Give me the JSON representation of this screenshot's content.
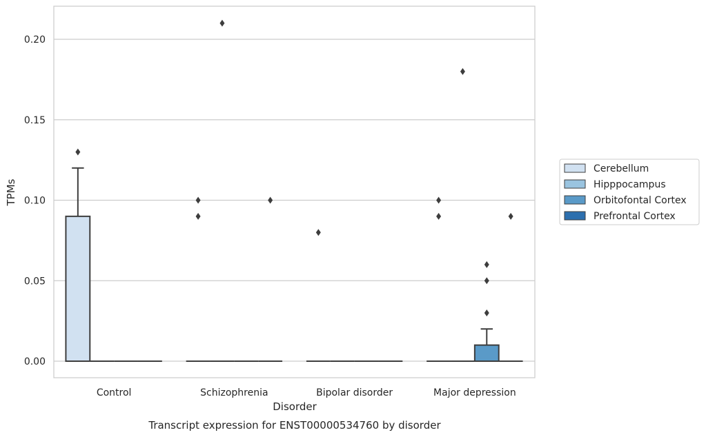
{
  "chart_data": {
    "type": "box",
    "title": "",
    "caption": "Transcript expression for ENST00000534760 by disorder",
    "xlabel": "Disorder",
    "ylabel": "TPMs",
    "ylim": [
      -0.01,
      0.22
    ],
    "yticks": [
      "0.00",
      "0.05",
      "0.10",
      "0.15",
      "0.20"
    ],
    "grid": true,
    "legend_position": "right",
    "categories": [
      "Control",
      "Schizophrenia",
      "Bipolar disorder",
      "Major depression"
    ],
    "series": [
      {
        "name": "Cerebellum",
        "color": "#d1e1f1",
        "boxes": [
          {
            "q1": 0.0,
            "median": 0.0,
            "q3": 0.09,
            "whisker_low": 0.0,
            "whisker_high": 0.12,
            "outliers": [
              0.13
            ]
          },
          {
            "q1": 0.0,
            "median": 0.0,
            "q3": 0.0,
            "whisker_low": 0.0,
            "whisker_high": 0.0,
            "outliers": [
              0.09,
              0.1
            ]
          },
          {
            "q1": 0.0,
            "median": 0.0,
            "q3": 0.0,
            "whisker_low": 0.0,
            "whisker_high": 0.0,
            "outliers": [
              0.08
            ]
          },
          {
            "q1": 0.0,
            "median": 0.0,
            "q3": 0.0,
            "whisker_low": 0.0,
            "whisker_high": 0.0,
            "outliers": [
              0.09,
              0.1
            ]
          }
        ]
      },
      {
        "name": "Hipppocampus",
        "color": "#9ac4e0",
        "boxes": [
          {
            "q1": 0.0,
            "median": 0.0,
            "q3": 0.0,
            "whisker_low": 0.0,
            "whisker_high": 0.0,
            "outliers": []
          },
          {
            "q1": 0.0,
            "median": 0.0,
            "q3": 0.0,
            "whisker_low": 0.0,
            "whisker_high": 0.0,
            "outliers": [
              0.21
            ]
          },
          {
            "q1": 0.0,
            "median": 0.0,
            "q3": 0.0,
            "whisker_low": 0.0,
            "whisker_high": 0.0,
            "outliers": []
          },
          {
            "q1": 0.0,
            "median": 0.0,
            "q3": 0.0,
            "whisker_low": 0.0,
            "whisker_high": 0.0,
            "outliers": [
              0.18
            ]
          }
        ]
      },
      {
        "name": "Orbitofontal Cortex",
        "color": "#5a9ac8",
        "boxes": [
          {
            "q1": 0.0,
            "median": 0.0,
            "q3": 0.0,
            "whisker_low": 0.0,
            "whisker_high": 0.0,
            "outliers": []
          },
          {
            "q1": 0.0,
            "median": 0.0,
            "q3": 0.0,
            "whisker_low": 0.0,
            "whisker_high": 0.0,
            "outliers": []
          },
          {
            "q1": 0.0,
            "median": 0.0,
            "q3": 0.0,
            "whisker_low": 0.0,
            "whisker_high": 0.0,
            "outliers": []
          },
          {
            "q1": 0.0,
            "median": 0.0,
            "q3": 0.01,
            "whisker_low": 0.0,
            "whisker_high": 0.02,
            "outliers": [
              0.03,
              0.05,
              0.06
            ]
          }
        ]
      },
      {
        "name": "Prefrontal Cortex",
        "color": "#2c6fae",
        "boxes": [
          {
            "q1": 0.0,
            "median": 0.0,
            "q3": 0.0,
            "whisker_low": 0.0,
            "whisker_high": 0.0,
            "outliers": []
          },
          {
            "q1": 0.0,
            "median": 0.0,
            "q3": 0.0,
            "whisker_low": 0.0,
            "whisker_high": 0.0,
            "outliers": [
              0.1
            ]
          },
          {
            "q1": 0.0,
            "median": 0.0,
            "q3": 0.0,
            "whisker_low": 0.0,
            "whisker_high": 0.0,
            "outliers": []
          },
          {
            "q1": 0.0,
            "median": 0.0,
            "q3": 0.0,
            "whisker_low": 0.0,
            "whisker_high": 0.0,
            "outliers": [
              0.09
            ]
          }
        ]
      }
    ]
  }
}
